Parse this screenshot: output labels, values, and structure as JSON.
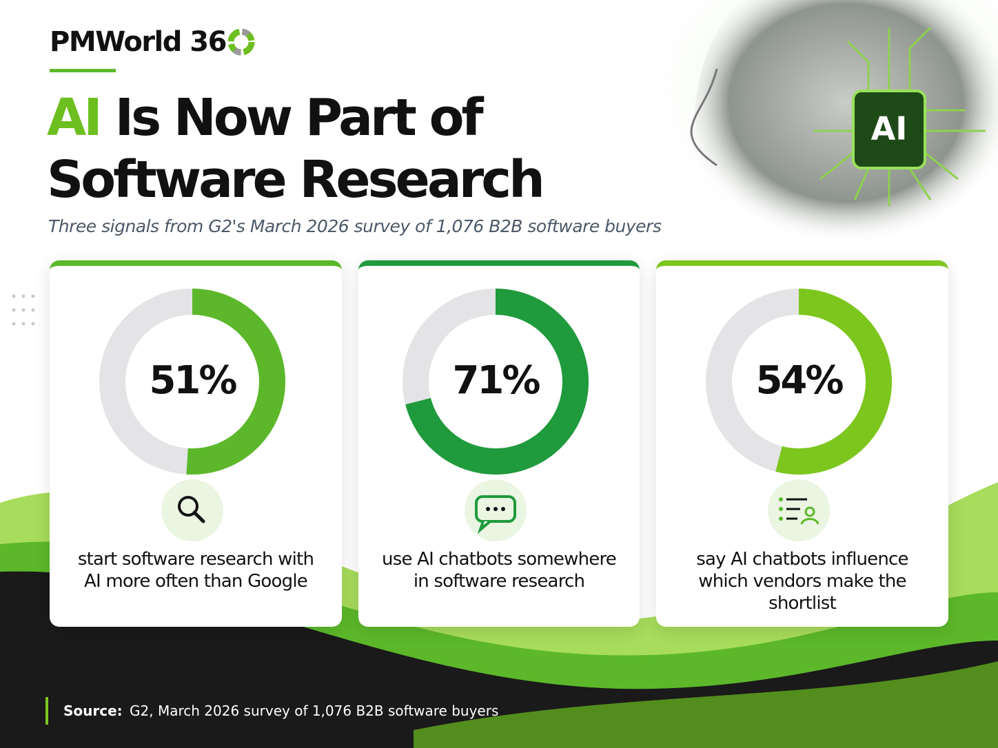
{
  "header": {
    "brand": "PMWorld 36",
    "title_highlight": "AI",
    "title_line1": "Is Now Part of",
    "title_line2": "Software Research",
    "subtitle": "Three signals from G2's March 2026 survey of 1,076 B2B software buyers",
    "chip_label": "AI"
  },
  "chart_data": [
    {
      "type": "donut",
      "values": [
        51
      ],
      "value_labels": [
        "51%"
      ],
      "color": "#5cb82a",
      "caption": "start software research with AI more often than Google"
    },
    {
      "type": "donut",
      "values": [
        71
      ],
      "value_labels": [
        "71%"
      ],
      "color": "#1f9a3c",
      "caption": "use AI chatbots somewhere in software research"
    },
    {
      "type": "donut",
      "values": [
        54
      ],
      "value_labels": [
        "54%"
      ],
      "color": "#7cc61e",
      "caption": "say AI chatbots influence which vendors make the shortlist"
    }
  ],
  "footer": {
    "source_label": "Source:",
    "source_text": "G2, March 2026 survey of 1,076 B2B software buyers"
  }
}
